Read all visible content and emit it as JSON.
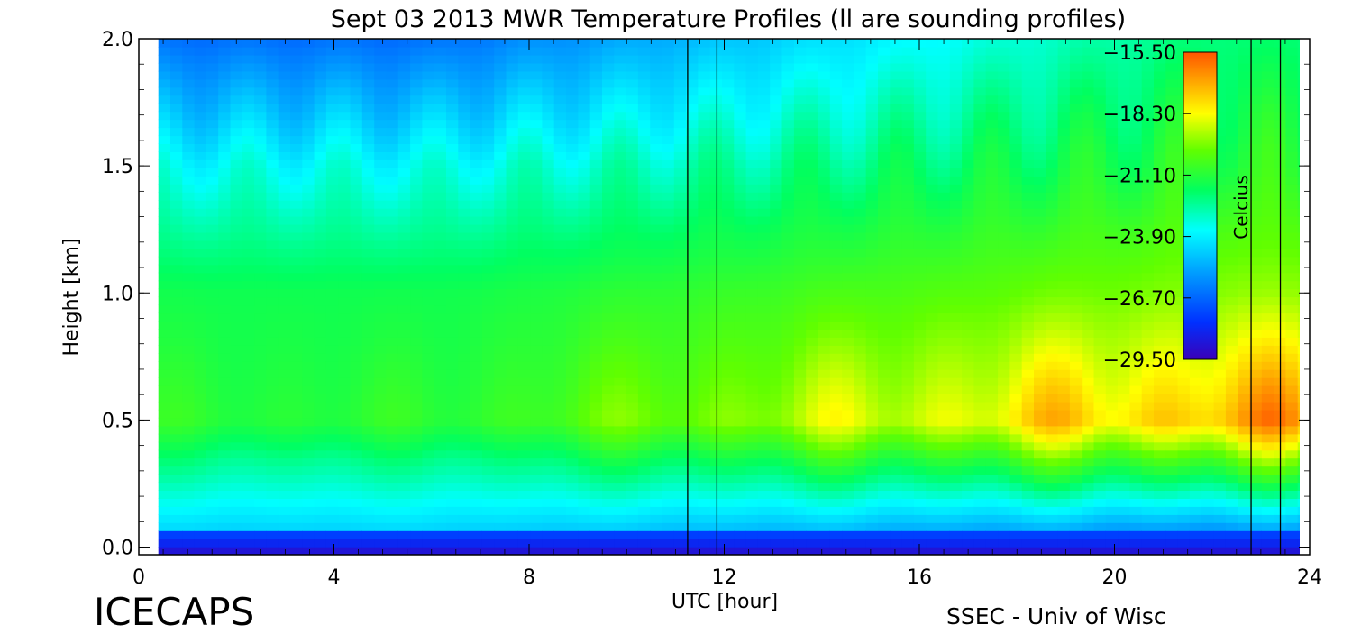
{
  "chart_data": {
    "type": "heatmap",
    "title": "Sept 03 2013 MWR Temperature Profiles (ll are sounding profiles)",
    "xlabel": "UTC [hour]",
    "ylabel": "Height [km]",
    "xlim": [
      0,
      24
    ],
    "ylim": [
      -0.03,
      2.0
    ],
    "x_ticks": [
      "0",
      "4",
      "8",
      "12",
      "16",
      "20",
      "24"
    ],
    "y_ticks": [
      "0.0",
      "0.5",
      "1.0",
      "1.5",
      "2.0"
    ],
    "grid": false,
    "colorbar": {
      "label": "Celcius",
      "range": [
        -29.5,
        -15.5
      ],
      "ticks": [
        "-15.50",
        "-18.30",
        "-21.10",
        "-23.90",
        "-26.70",
        "-29.50"
      ],
      "placement": "top-right"
    },
    "sounding_profiles_utc": [
      11.25,
      11.85,
      22.8,
      23.4
    ],
    "approx_temperature_by_height": {
      "heights_km": [
        0.0,
        0.5,
        1.0,
        1.5,
        2.0
      ],
      "early_day_c": [
        -25.0,
        -21.0,
        -21.5,
        -23.5,
        -26.5
      ],
      "late_day_c": [
        -27.0,
        -17.0,
        -19.5,
        -21.0,
        -22.0
      ]
    },
    "footer_left": "ICECAPS",
    "footer_right": "SSEC - Univ of Wisc"
  }
}
